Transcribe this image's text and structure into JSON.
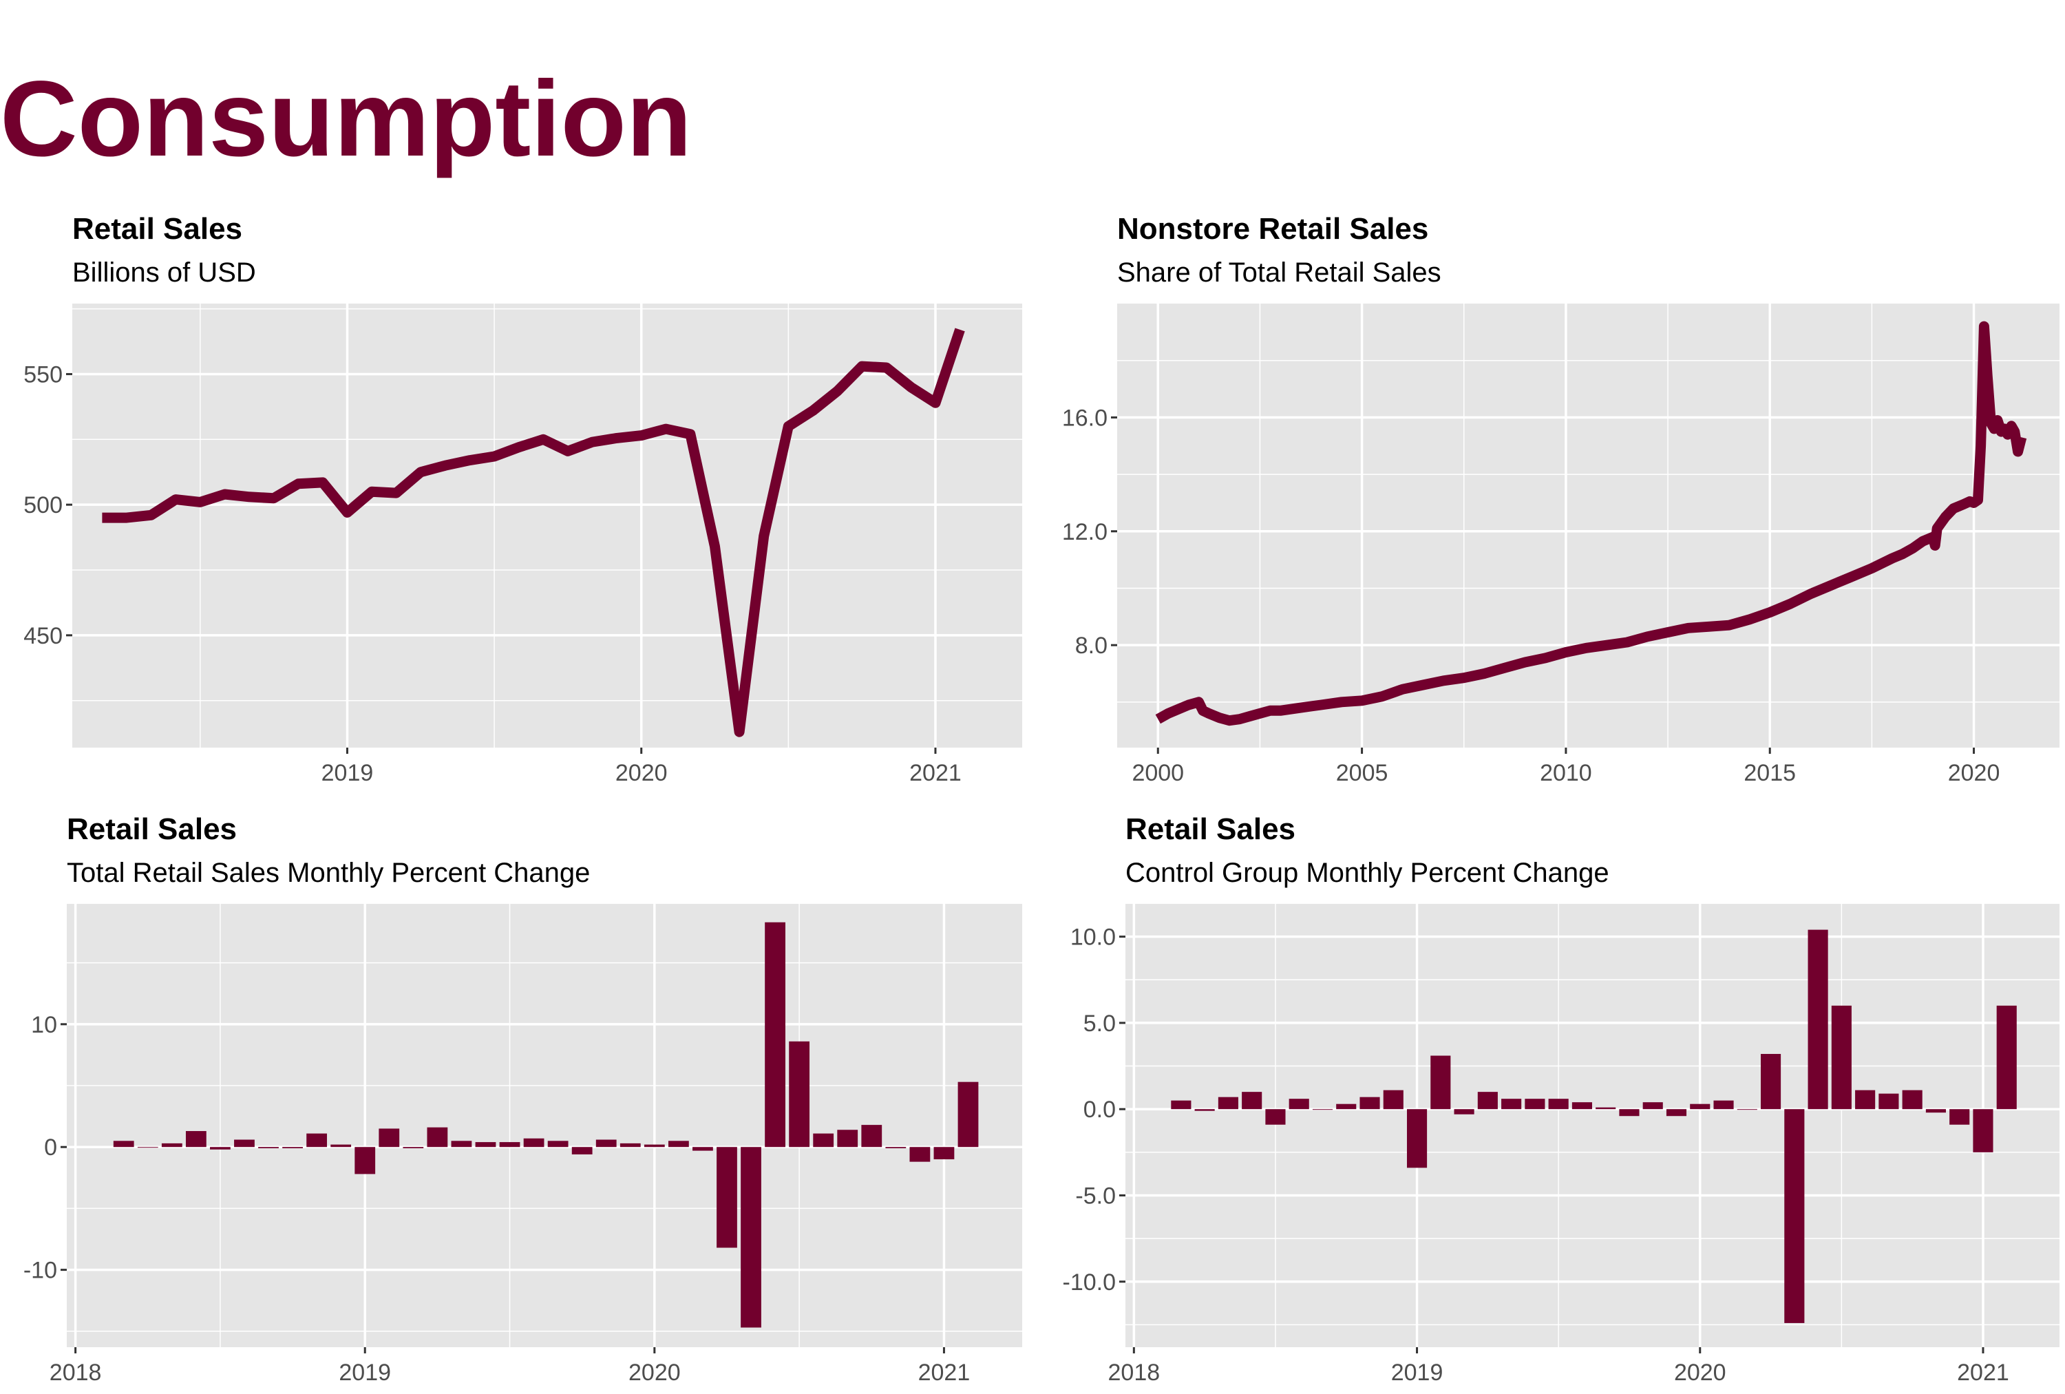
{
  "page": {
    "title": "Consumption"
  },
  "colors": {
    "series": "#72002D",
    "panel_bg": "#E5E5E5",
    "grid": "#FFFFFF",
    "tick_text": "#4D4D4D"
  },
  "chart_data": [
    {
      "type": "line",
      "title": "Retail Sales",
      "subtitle": "Billions of USD",
      "xlabel": "",
      "ylabel": "",
      "grid": true,
      "x_ticks": [
        2019,
        2020,
        2021
      ],
      "x_tick_labels": [
        "2019",
        "2020",
        "2021"
      ],
      "y_ticks": [
        450,
        500,
        550
      ],
      "y_tick_labels": [
        "450",
        "500",
        "550"
      ],
      "xlim": [
        2018.065,
        2021.295
      ],
      "ylim": [
        407,
        577
      ],
      "series": [
        {
          "x": [
            "2018-03",
            "2018-04",
            "2018-05",
            "2018-06",
            "2018-07",
            "2018-08",
            "2018-09",
            "2018-10",
            "2018-11",
            "2018-12",
            "2019-01",
            "2019-02",
            "2019-03",
            "2019-04",
            "2019-05",
            "2019-06",
            "2019-07",
            "2019-08",
            "2019-09",
            "2019-10",
            "2019-11",
            "2019-12",
            "2020-01",
            "2020-02",
            "2020-03",
            "2020-04",
            "2020-05",
            "2020-06",
            "2020-07",
            "2020-08",
            "2020-09",
            "2020-10",
            "2020-11",
            "2020-12",
            "2021-01",
            "2021-02"
          ],
          "values": [
            495,
            495,
            496,
            502,
            501,
            504,
            503,
            502.5,
            508,
            508.5,
            497,
            505,
            504.5,
            512.5,
            515,
            517,
            518.5,
            522,
            525,
            520.5,
            524,
            525.5,
            526.5,
            529,
            527,
            484,
            413,
            488,
            530,
            536,
            543.5,
            553,
            552.5,
            545,
            539,
            567
          ]
        }
      ]
    },
    {
      "type": "line",
      "title": "Nonstore Retail Sales",
      "subtitle": "Share of Total Retail Sales",
      "xlabel": "",
      "ylabel": "",
      "grid": true,
      "x_ticks": [
        2000,
        2005,
        2010,
        2015,
        2020
      ],
      "x_tick_labels": [
        "2000",
        "2005",
        "2010",
        "2015",
        "2020"
      ],
      "y_ticks": [
        8.0,
        12.0,
        16.0
      ],
      "y_tick_labels": [
        "8.0",
        "12.0",
        "16.0"
      ],
      "xlim": [
        1999.0,
        2022.1
      ],
      "ylim": [
        4.4,
        20.0
      ],
      "series": [
        {
          "x": [
            2000.0,
            2000.25,
            2000.5,
            2000.75,
            2001.0,
            2001.1,
            2001.25,
            2001.5,
            2001.75,
            2002.0,
            2002.25,
            2002.5,
            2002.75,
            2003.0,
            2003.25,
            2003.5,
            2003.75,
            2004.0,
            2004.5,
            2005.0,
            2005.5,
            2006.0,
            2006.5,
            2007.0,
            2007.5,
            2008.0,
            2008.5,
            2009.0,
            2009.5,
            2010.0,
            2010.5,
            2011.0,
            2011.5,
            2012.0,
            2012.5,
            2013.0,
            2013.5,
            2014.0,
            2014.5,
            2015.0,
            2015.5,
            2016.0,
            2016.5,
            2017.0,
            2017.5,
            2018.0,
            2018.25,
            2018.5,
            2018.75,
            2019.0,
            2019.05,
            2019.1,
            2019.3,
            2019.5,
            2019.75,
            2019.9,
            2020.0,
            2020.1,
            2020.17,
            2020.25,
            2020.33,
            2020.42,
            2020.5,
            2020.58,
            2020.67,
            2020.75,
            2020.83,
            2020.92,
            2021.0,
            2021.08,
            2021.17
          ],
          "values": [
            5.4,
            5.6,
            5.75,
            5.9,
            6.0,
            5.7,
            5.6,
            5.45,
            5.35,
            5.4,
            5.5,
            5.6,
            5.7,
            5.7,
            5.75,
            5.8,
            5.85,
            5.9,
            6.0,
            6.05,
            6.2,
            6.45,
            6.6,
            6.75,
            6.85,
            7.0,
            7.2,
            7.4,
            7.55,
            7.75,
            7.9,
            8.0,
            8.1,
            8.3,
            8.45,
            8.6,
            8.65,
            8.7,
            8.9,
            9.15,
            9.45,
            9.8,
            10.1,
            10.4,
            10.7,
            11.05,
            11.2,
            11.4,
            11.65,
            11.8,
            11.5,
            12.1,
            12.5,
            12.8,
            12.95,
            13.05,
            13.0,
            13.1,
            15.0,
            19.2,
            17.5,
            15.8,
            15.6,
            15.9,
            15.5,
            15.6,
            15.4,
            15.7,
            15.5,
            14.8,
            15.3
          ]
        }
      ]
    },
    {
      "type": "bar",
      "title": "Retail Sales",
      "subtitle": "Total Retail Sales Monthly Percent Change",
      "xlabel": "",
      "ylabel": "",
      "grid": true,
      "x_ticks": [
        2018,
        2019,
        2020,
        2021
      ],
      "x_tick_labels": [
        "2018",
        "2019",
        "2020",
        "2021"
      ],
      "y_ticks": [
        -10,
        0,
        10
      ],
      "y_tick_labels": [
        "-10",
        "0",
        "10"
      ],
      "xlim": [
        2017.97,
        2021.27
      ],
      "ylim": [
        -16.3,
        19.8
      ],
      "categories": [
        "2018-03",
        "2018-04",
        "2018-05",
        "2018-06",
        "2018-07",
        "2018-08",
        "2018-09",
        "2018-10",
        "2018-11",
        "2018-12",
        "2019-01",
        "2019-02",
        "2019-03",
        "2019-04",
        "2019-05",
        "2019-06",
        "2019-07",
        "2019-08",
        "2019-09",
        "2019-10",
        "2019-11",
        "2019-12",
        "2020-01",
        "2020-02",
        "2020-03",
        "2020-04",
        "2020-05",
        "2020-06",
        "2020-07",
        "2020-08",
        "2020-09",
        "2020-10",
        "2020-11",
        "2020-12",
        "2021-01",
        "2021-02"
      ],
      "values": [
        0.5,
        0.0,
        0.3,
        1.3,
        -0.2,
        0.6,
        -0.1,
        -0.1,
        1.1,
        0.2,
        -2.2,
        1.5,
        -0.1,
        1.6,
        0.5,
        0.4,
        0.4,
        0.7,
        0.5,
        -0.6,
        0.6,
        0.3,
        0.2,
        0.5,
        -0.3,
        -8.2,
        -14.7,
        18.3,
        8.6,
        1.1,
        1.4,
        1.8,
        -0.1,
        -1.2,
        -1.0,
        5.3
      ]
    },
    {
      "type": "bar",
      "title": "Retail Sales",
      "subtitle": "Control Group Monthly Percent Change",
      "xlabel": "",
      "ylabel": "",
      "grid": true,
      "x_ticks": [
        2018,
        2019,
        2020,
        2021
      ],
      "x_tick_labels": [
        "2018",
        "2019",
        "2020",
        "2021"
      ],
      "y_ticks": [
        -10.0,
        -5.0,
        0.0,
        5.0,
        10.0
      ],
      "y_tick_labels": [
        "-10.0",
        "-5.0",
        "0.0",
        "5.0",
        "10.0"
      ],
      "xlim": [
        2017.97,
        2021.27
      ],
      "ylim": [
        -13.8,
        11.9
      ],
      "categories": [
        "2018-03",
        "2018-04",
        "2018-05",
        "2018-06",
        "2018-07",
        "2018-08",
        "2018-09",
        "2018-10",
        "2018-11",
        "2018-12",
        "2019-01",
        "2019-02",
        "2019-03",
        "2019-04",
        "2019-05",
        "2019-06",
        "2019-07",
        "2019-08",
        "2019-09",
        "2019-10",
        "2019-11",
        "2019-12",
        "2020-01",
        "2020-02",
        "2020-03",
        "2020-04",
        "2020-05",
        "2020-06",
        "2020-07",
        "2020-08",
        "2020-09",
        "2020-10",
        "2020-11",
        "2020-12",
        "2021-01",
        "2021-02"
      ],
      "values": [
        0.5,
        -0.1,
        0.7,
        1.0,
        -0.9,
        0.6,
        0.0,
        0.3,
        0.7,
        1.1,
        -3.4,
        3.1,
        -0.3,
        1.0,
        0.6,
        0.6,
        0.6,
        0.4,
        0.1,
        -0.4,
        0.4,
        -0.4,
        0.3,
        0.5,
        0.0,
        3.2,
        -12.4,
        10.4,
        6.0,
        1.1,
        0.9,
        1.1,
        -0.2,
        -0.9,
        -2.5,
        6.0
      ]
    }
  ]
}
